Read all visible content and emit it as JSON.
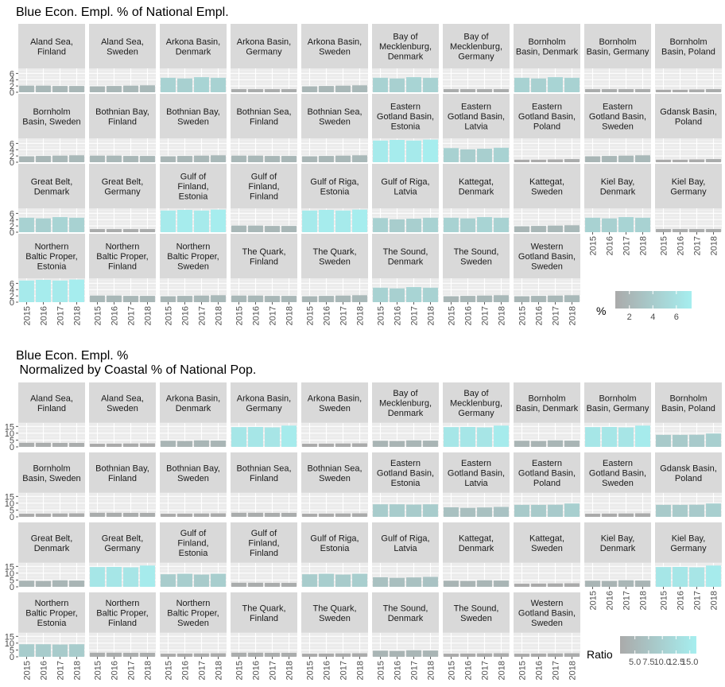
{
  "chart_data": [
    {
      "type": "bar",
      "facet": "wrap",
      "title": "Blue Econ. Empl. % of National Empl.",
      "x": [
        "2015",
        "2016",
        "2017",
        "2018"
      ],
      "y_ticks": [
        0,
        2,
        4,
        6
      ],
      "ylim": [
        0,
        7.6
      ],
      "legend": {
        "title": "%",
        "type": "colorbar",
        "low_color": "#aaaaaa",
        "high_color": "#a6eeef",
        "range": [
          0.8,
          7.3
        ],
        "ticks": [
          2,
          4,
          6
        ],
        "tick_labels": [
          "2",
          "4",
          "6"
        ]
      },
      "panels": [
        {
          "label": "Aland Sea,\nFinland",
          "values": [
            2.1,
            2.1,
            2.0,
            2.0
          ]
        },
        {
          "label": "Aland Sea,\nSweden",
          "values": [
            1.9,
            2.0,
            2.1,
            2.2
          ]
        },
        {
          "label": "Arkona Basin,\nDenmark",
          "values": [
            4.6,
            4.4,
            4.8,
            4.6
          ]
        },
        {
          "label": "Arkona Basin,\nGermany",
          "values": [
            1.0,
            1.0,
            1.0,
            1.0
          ]
        },
        {
          "label": "Arkona Basin,\nSweden",
          "values": [
            1.9,
            2.0,
            2.1,
            2.2
          ]
        },
        {
          "label": "Bay of\nMecklenburg,\nDenmark",
          "values": [
            4.6,
            4.4,
            4.8,
            4.6
          ]
        },
        {
          "label": "Bay of\nMecklenburg,\nGermany",
          "values": [
            1.0,
            1.0,
            1.0,
            1.0
          ]
        },
        {
          "label": "Bornholm\nBasin, Denmark",
          "values": [
            4.6,
            4.4,
            4.8,
            4.6
          ]
        },
        {
          "label": "Bornholm\nBasin, Germany",
          "values": [
            1.0,
            1.0,
            1.0,
            1.0
          ]
        },
        {
          "label": "Bornholm\nBasin, Poland",
          "values": [
            0.8,
            0.8,
            0.9,
            1.0
          ]
        },
        {
          "label": "Bornholm\nBasin, Sweden",
          "values": [
            1.9,
            2.0,
            2.1,
            2.2
          ]
        },
        {
          "label": "Bothnian Bay,\nFinland",
          "values": [
            2.1,
            2.1,
            2.0,
            2.0
          ]
        },
        {
          "label": "Bothnian Bay,\nSweden",
          "values": [
            1.9,
            2.0,
            2.1,
            2.2
          ]
        },
        {
          "label": "Bothnian Sea,\nFinland",
          "values": [
            2.1,
            2.1,
            2.0,
            2.0
          ]
        },
        {
          "label": "Bothnian Sea,\nSweden",
          "values": [
            1.9,
            2.0,
            2.1,
            2.2
          ]
        },
        {
          "label": "Eastern\nGotland Basin,\nEstonia",
          "values": [
            6.9,
            7.1,
            6.9,
            7.2
          ]
        },
        {
          "label": "Eastern\nGotland Basin,\nLatvia",
          "values": [
            4.5,
            4.1,
            4.3,
            4.6
          ]
        },
        {
          "label": "Eastern\nGotland Basin,\nPoland",
          "values": [
            0.8,
            0.8,
            0.9,
            1.0
          ]
        },
        {
          "label": "Eastern\nGotland Basin,\nSweden",
          "values": [
            1.9,
            2.0,
            2.1,
            2.2
          ]
        },
        {
          "label": "Gdansk Basin,\nPoland",
          "values": [
            0.8,
            0.8,
            0.9,
            1.0
          ]
        },
        {
          "label": "Great Belt,\nDenmark",
          "values": [
            4.6,
            4.4,
            4.8,
            4.6
          ]
        },
        {
          "label": "Great Belt,\nGermany",
          "values": [
            1.0,
            1.0,
            1.0,
            1.0
          ]
        },
        {
          "label": "Gulf of\nFinland,\nEstonia",
          "values": [
            6.9,
            7.1,
            6.9,
            7.2
          ]
        },
        {
          "label": "Gulf of\nFinland,\nFinland",
          "values": [
            2.1,
            2.1,
            2.0,
            2.0
          ]
        },
        {
          "label": "Gulf of Riga,\nEstonia",
          "values": [
            6.9,
            7.1,
            6.9,
            7.2
          ]
        },
        {
          "label": "Gulf of Riga,\nLatvia",
          "values": [
            4.5,
            4.1,
            4.3,
            4.6
          ]
        },
        {
          "label": "Kattegat,\nDenmark",
          "values": [
            4.6,
            4.4,
            4.8,
            4.6
          ]
        },
        {
          "label": "Kattegat,\nSweden",
          "values": [
            1.9,
            2.0,
            2.1,
            2.2
          ]
        },
        {
          "label": "Kiel Bay,\nDenmark",
          "values": [
            4.6,
            4.4,
            4.8,
            4.6
          ]
        },
        {
          "label": "Kiel Bay,\nGermany",
          "values": [
            1.0,
            1.0,
            1.0,
            1.0
          ]
        },
        {
          "label": "Northern\nBaltic Proper,\nEstonia",
          "values": [
            6.9,
            7.1,
            6.9,
            7.2
          ]
        },
        {
          "label": "Northern\nBaltic Proper,\nFinland",
          "values": [
            2.1,
            2.1,
            2.0,
            2.0
          ]
        },
        {
          "label": "Northern\nBaltic Proper,\nSweden",
          "values": [
            1.9,
            2.0,
            2.1,
            2.2
          ]
        },
        {
          "label": "The Quark,\nFinland",
          "values": [
            2.1,
            2.1,
            2.0,
            2.0
          ]
        },
        {
          "label": "The Quark,\nSweden",
          "values": [
            1.9,
            2.0,
            2.1,
            2.2
          ]
        },
        {
          "label": "The Sound,\nDenmark",
          "values": [
            4.6,
            4.4,
            4.8,
            4.6
          ]
        },
        {
          "label": "The Sound,\nSweden",
          "values": [
            1.9,
            2.0,
            2.1,
            2.2
          ]
        },
        {
          "label": "Western\nGotland Basin,\nSweden",
          "values": [
            1.9,
            2.0,
            2.1,
            2.2
          ]
        }
      ]
    },
    {
      "type": "bar",
      "facet": "wrap",
      "title": "Blue Econ. Empl. %\n Normalized by Coastal % of National Pop.",
      "x": [
        "2015",
        "2016",
        "2017",
        "2018"
      ],
      "y_ticks": [
        0,
        5,
        10,
        15
      ],
      "ylim": [
        0,
        17.5
      ],
      "legend": {
        "title": "Ratio",
        "type": "colorbar",
        "low_color": "#aaaaaa",
        "high_color": "#a6eeef",
        "range": [
          2.3,
          16.2
        ],
        "ticks": [
          5,
          7.5,
          10,
          12.5,
          15
        ],
        "tick_labels": [
          "5.0",
          "7.5",
          "10.0",
          "12.5",
          "15.0"
        ]
      },
      "panels": [
        {
          "label": "Aland Sea,\nFinland",
          "values": [
            3.0,
            3.0,
            2.9,
            2.9
          ]
        },
        {
          "label": "Aland Sea,\nSweden",
          "values": [
            2.3,
            2.4,
            2.5,
            2.6
          ]
        },
        {
          "label": "Arkona Basin,\nDenmark",
          "values": [
            4.5,
            4.3,
            4.8,
            4.6
          ]
        },
        {
          "label": "Arkona Basin,\nGermany",
          "values": [
            14.5,
            14.6,
            14.3,
            15.6
          ]
        },
        {
          "label": "Arkona Basin,\nSweden",
          "values": [
            2.3,
            2.4,
            2.5,
            2.6
          ]
        },
        {
          "label": "Bay of\nMecklenburg,\nDenmark",
          "values": [
            4.5,
            4.3,
            4.8,
            4.6
          ]
        },
        {
          "label": "Bay of\nMecklenburg,\nGermany",
          "values": [
            14.5,
            14.6,
            14.3,
            15.6
          ]
        },
        {
          "label": "Bornholm\nBasin, Denmark",
          "values": [
            4.5,
            4.3,
            4.8,
            4.6
          ]
        },
        {
          "label": "Bornholm\nBasin, Germany",
          "values": [
            14.5,
            14.6,
            14.3,
            15.6
          ]
        },
        {
          "label": "Bornholm\nBasin, Poland",
          "values": [
            8.8,
            8.8,
            8.9,
            9.8
          ]
        },
        {
          "label": "Bornholm\nBasin, Sweden",
          "values": [
            2.3,
            2.4,
            2.5,
            2.6
          ]
        },
        {
          "label": "Bothnian Bay,\nFinland",
          "values": [
            3.0,
            3.0,
            2.9,
            2.9
          ]
        },
        {
          "label": "Bothnian Bay,\nSweden",
          "values": [
            2.3,
            2.4,
            2.5,
            2.6
          ]
        },
        {
          "label": "Bothnian Sea,\nFinland",
          "values": [
            3.0,
            3.0,
            2.9,
            2.9
          ]
        },
        {
          "label": "Bothnian Sea,\nSweden",
          "values": [
            2.3,
            2.4,
            2.5,
            2.6
          ]
        },
        {
          "label": "Eastern\nGotland Basin,\nEstonia",
          "values": [
            9.2,
            9.2,
            9.0,
            9.2
          ]
        },
        {
          "label": "Eastern\nGotland Basin,\nLatvia",
          "values": [
            7.0,
            6.6,
            6.9,
            7.3
          ]
        },
        {
          "label": "Eastern\nGotland Basin,\nPoland",
          "values": [
            8.8,
            8.8,
            8.9,
            9.8
          ]
        },
        {
          "label": "Eastern\nGotland Basin,\nSweden",
          "values": [
            2.3,
            2.4,
            2.5,
            2.6
          ]
        },
        {
          "label": "Gdansk Basin,\nPoland",
          "values": [
            8.8,
            8.8,
            8.9,
            9.8
          ]
        },
        {
          "label": "Great Belt,\nDenmark",
          "values": [
            4.5,
            4.3,
            4.8,
            4.6
          ]
        },
        {
          "label": "Great Belt,\nGermany",
          "values": [
            14.5,
            14.6,
            14.3,
            15.6
          ]
        },
        {
          "label": "Gulf of\nFinland,\nEstonia",
          "values": [
            9.2,
            9.6,
            9.0,
            9.6
          ]
        },
        {
          "label": "Gulf of\nFinland,\nFinland",
          "values": [
            3.0,
            3.0,
            2.9,
            2.9
          ]
        },
        {
          "label": "Gulf of Riga,\nEstonia",
          "values": [
            9.2,
            9.6,
            9.0,
            9.6
          ]
        },
        {
          "label": "Gulf of Riga,\nLatvia",
          "values": [
            7.0,
            6.6,
            6.9,
            7.3
          ]
        },
        {
          "label": "Kattegat,\nDenmark",
          "values": [
            4.5,
            4.3,
            4.8,
            4.6
          ]
        },
        {
          "label": "Kattegat,\nSweden",
          "values": [
            2.3,
            2.4,
            2.5,
            2.6
          ]
        },
        {
          "label": "Kiel Bay,\nDenmark",
          "values": [
            4.5,
            4.3,
            4.8,
            4.6
          ]
        },
        {
          "label": "Kiel Bay,\nGermany",
          "values": [
            14.5,
            14.6,
            14.3,
            15.6
          ]
        },
        {
          "label": "Northern\nBaltic Proper,\nEstonia",
          "values": [
            9.2,
            9.2,
            9.0,
            9.2
          ]
        },
        {
          "label": "Northern\nBaltic Proper,\nFinland",
          "values": [
            3.0,
            3.0,
            2.9,
            2.9
          ]
        },
        {
          "label": "Northern\nBaltic Proper,\nSweden",
          "values": [
            2.3,
            2.4,
            2.5,
            2.6
          ]
        },
        {
          "label": "The Quark,\nFinland",
          "values": [
            3.0,
            3.0,
            2.9,
            2.9
          ]
        },
        {
          "label": "The Quark,\nSweden",
          "values": [
            2.3,
            2.4,
            2.5,
            2.6
          ]
        },
        {
          "label": "The Sound,\nDenmark",
          "values": [
            4.5,
            4.3,
            4.8,
            4.6
          ]
        },
        {
          "label": "The Sound,\nSweden",
          "values": [
            2.3,
            2.4,
            2.5,
            2.6
          ]
        },
        {
          "label": "Western\nGotland Basin,\nSweden",
          "values": [
            2.3,
            2.4,
            2.5,
            2.6
          ]
        }
      ]
    }
  ]
}
